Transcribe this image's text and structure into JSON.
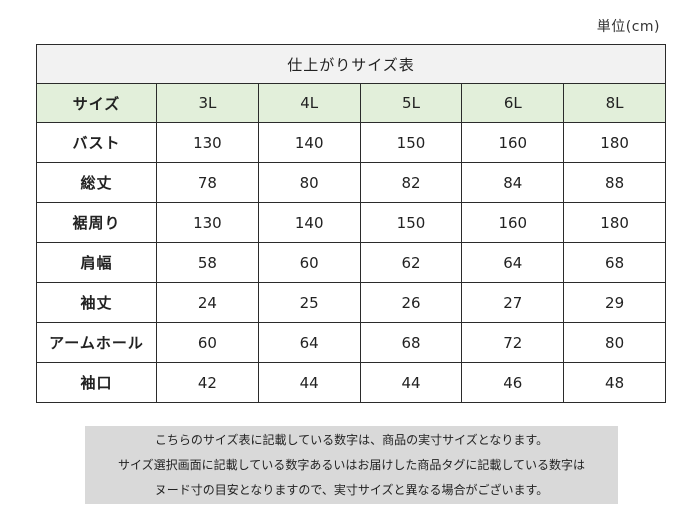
{
  "unit_label": "単位(cm)",
  "table": {
    "caption": "仕上がりサイズ表",
    "header_label": "サイズ",
    "sizes": [
      "3L",
      "4L",
      "5L",
      "6L",
      "8L"
    ],
    "rows": [
      {
        "label": "バスト",
        "values": [
          "130",
          "140",
          "150",
          "160",
          "180"
        ]
      },
      {
        "label": "総丈",
        "values": [
          "78",
          "80",
          "82",
          "84",
          "88"
        ]
      },
      {
        "label": "裾周り",
        "values": [
          "130",
          "140",
          "150",
          "160",
          "180"
        ]
      },
      {
        "label": "肩幅",
        "values": [
          "58",
          "60",
          "62",
          "64",
          "68"
        ]
      },
      {
        "label": "袖丈",
        "values": [
          "24",
          "25",
          "26",
          "27",
          "29"
        ]
      },
      {
        "label": "アームホール",
        "values": [
          "60",
          "64",
          "68",
          "72",
          "80"
        ]
      },
      {
        "label": "袖口",
        "values": [
          "42",
          "44",
          "44",
          "46",
          "48"
        ]
      }
    ]
  },
  "note": {
    "lines": [
      "こちらのサイズ表に記載している数字は、商品の実寸サイズとなります。",
      "サイズ選択画面に記載している数字あるいはお届けした商品タグに記載している数字は",
      "ヌード寸の目安となりますので、実寸サイズと異なる場合がございます。"
    ]
  },
  "colors": {
    "header_bg": "#e2efda",
    "caption_bg": "#f2f2f2",
    "note_bg": "#d9d9d9",
    "border": "#2b2b2b"
  }
}
